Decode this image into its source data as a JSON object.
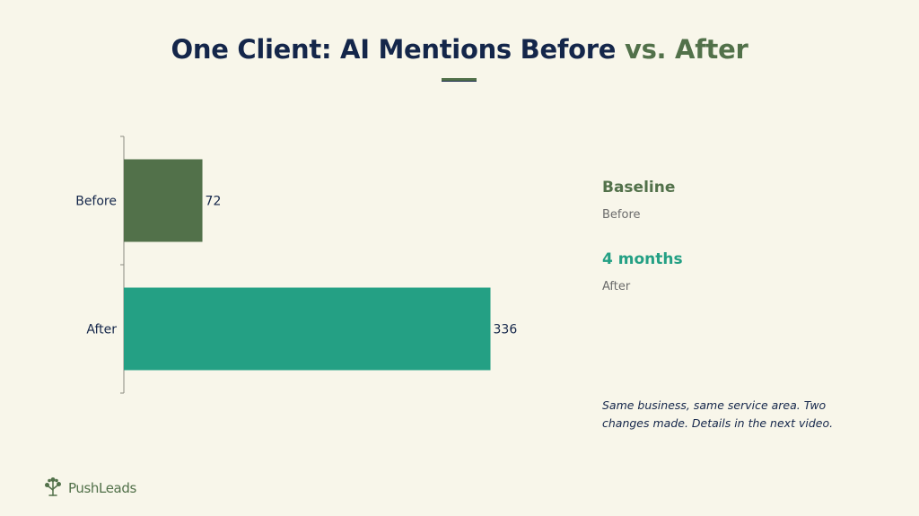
{
  "title": {
    "main": "One Client: AI Mentions Before",
    "accent": "vs. After"
  },
  "colors": {
    "background": "#f8f6ea",
    "navy": "#14264a",
    "before": "#52714a",
    "after": "#24a084"
  },
  "chart_data": {
    "type": "bar",
    "orientation": "horizontal",
    "categories": [
      "Before",
      "After"
    ],
    "values": [
      72,
      336
    ],
    "data_labels": [
      "72",
      "336"
    ],
    "colors": [
      "#52714a",
      "#24a084"
    ],
    "xlim": [
      0,
      380
    ],
    "grid": false
  },
  "side_panel": {
    "items": [
      {
        "title": "Baseline",
        "subtitle": "Before",
        "color": "#52714a"
      },
      {
        "title": "4 months",
        "subtitle": "After",
        "color": "#24a084"
      }
    ],
    "note": "Same business, same service area. Two changes made. Details in the next video."
  },
  "logo": {
    "text": "PushLeads",
    "icon": "tree-icon"
  }
}
